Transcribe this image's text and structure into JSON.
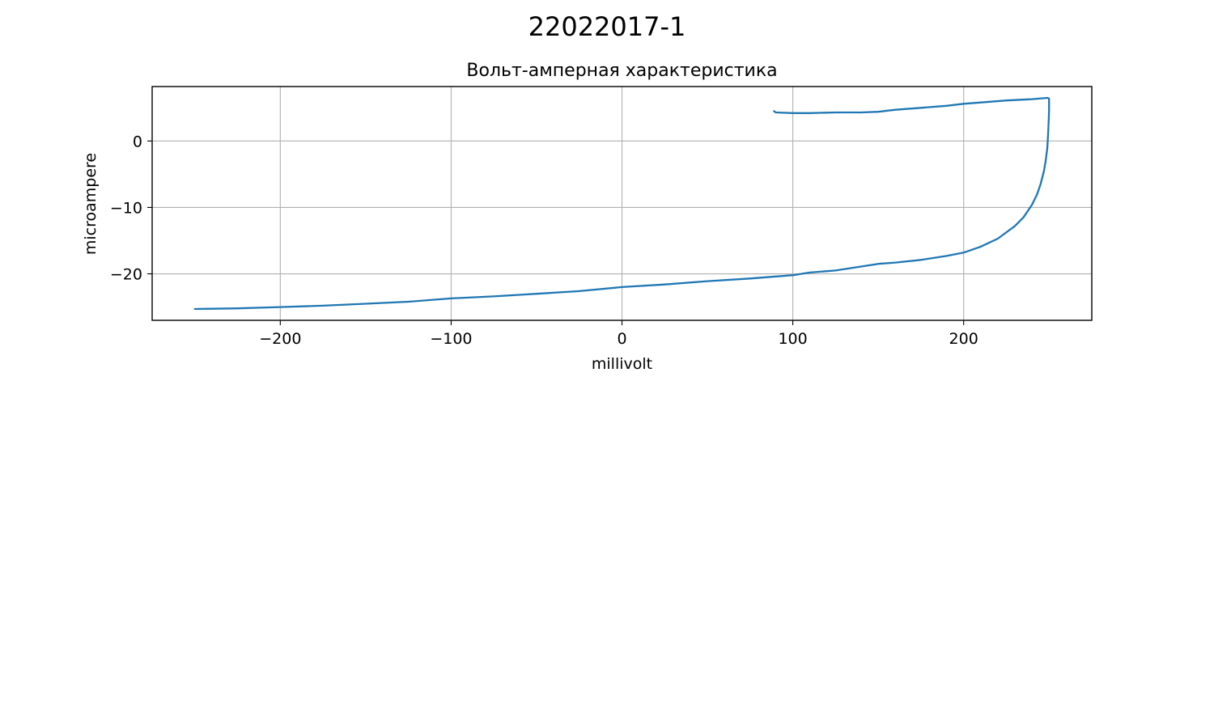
{
  "figure": {
    "suptitle": "22022017-1"
  },
  "chart_data": {
    "type": "line",
    "title": "Вольт-амперная характеристика",
    "xlabel": "millivolt",
    "ylabel": "microampere",
    "xlim": [
      -275,
      275
    ],
    "ylim": [
      -27,
      8.2
    ],
    "xticks": [
      -200,
      -100,
      0,
      100,
      200
    ],
    "xtick_labels": [
      "−200",
      "−100",
      "0",
      "100",
      "200"
    ],
    "yticks": [
      -20,
      -10,
      0
    ],
    "ytick_labels": [
      "−20",
      "−10",
      "0"
    ],
    "grid": true,
    "series": [
      {
        "color": "#1f77b4",
        "x": [
          -250,
          -225,
          -200,
          -175,
          -150,
          -125,
          -100,
          -75,
          -50,
          -25,
          0,
          25,
          50,
          75,
          100,
          110,
          125,
          140,
          150,
          160,
          175,
          190,
          200,
          210,
          220,
          230,
          235,
          240,
          243,
          245,
          247,
          248,
          249,
          249.5,
          250,
          250,
          249,
          240,
          225,
          210,
          200,
          190,
          175,
          160,
          150,
          140,
          125,
          110,
          100,
          90,
          89
        ],
        "y": [
          -25.3,
          -25.2,
          -25.0,
          -24.8,
          -24.5,
          -24.2,
          -23.7,
          -23.4,
          -23.0,
          -22.6,
          -22.0,
          -21.6,
          -21.1,
          -20.7,
          -20.2,
          -19.8,
          -19.5,
          -18.9,
          -18.5,
          -18.3,
          -17.9,
          -17.3,
          -16.8,
          -15.9,
          -14.7,
          -12.8,
          -11.5,
          -9.6,
          -8.0,
          -6.5,
          -4.5,
          -3.0,
          -1.0,
          1.5,
          4.5,
          6.4,
          6.5,
          6.3,
          6.1,
          5.8,
          5.6,
          5.3,
          5.0,
          4.7,
          4.4,
          4.3,
          4.3,
          4.2,
          4.2,
          4.3,
          4.5
        ]
      }
    ]
  }
}
